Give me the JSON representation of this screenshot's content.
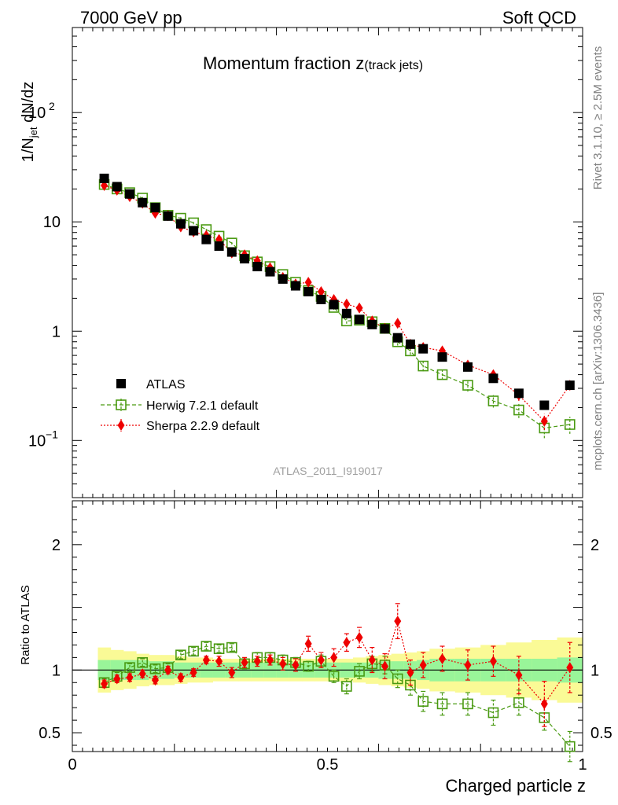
{
  "header": {
    "left": "7000 GeV pp",
    "right": "Soft QCD"
  },
  "side_labels": {
    "rivet": "Rivet 3.1.10, ≥ 2.5M events",
    "mcplots": "mcplots.cern.ch [arXiv:1306.3436]"
  },
  "colors": {
    "atlas": "#000000",
    "herwig": "#4a9a12",
    "sherpa": "#ee0000",
    "band_inner": "#99f599",
    "band_outer": "#fafa96"
  },
  "chart_data": [
    {
      "type": "scatter",
      "title": "Momentum fraction",
      "title_var": "z",
      "title_sub": "(track jets)",
      "ylabel_main": "1/N",
      "ylabel_sub": "jet",
      "ylabel_tail": " dN/dz",
      "yscale": "log",
      "ylim": [
        0.03,
        600
      ],
      "xlim": [
        0,
        1
      ],
      "yticks": [
        {
          "v": 0.1,
          "base": "10",
          "exp": "−1"
        },
        {
          "v": 1,
          "label": "1"
        },
        {
          "v": 10,
          "label": "10"
        },
        {
          "v": 100,
          "base": "10",
          "exp": "2"
        }
      ],
      "legend": [
        "ATLAS",
        "Herwig 7.2.1 default",
        "Sherpa 2.2.9 default"
      ],
      "legend_position": "lower-left",
      "watermark": "ATLAS_2011_I919017",
      "x": [
        0.0625,
        0.0875,
        0.1125,
        0.1375,
        0.1625,
        0.1875,
        0.2125,
        0.2375,
        0.2625,
        0.2875,
        0.3125,
        0.3375,
        0.3625,
        0.3875,
        0.4125,
        0.4375,
        0.4625,
        0.4875,
        0.5125,
        0.5375,
        0.5625,
        0.5875,
        0.6125,
        0.6375,
        0.6625,
        0.6875,
        0.725,
        0.775,
        0.825,
        0.875,
        0.925,
        0.975
      ],
      "series": [
        {
          "name": "ATLAS",
          "values": [
            25,
            21,
            18,
            15,
            13.5,
            11.3,
            9.6,
            8.3,
            6.9,
            6.0,
            5.3,
            4.6,
            3.9,
            3.5,
            3.0,
            2.6,
            2.3,
            1.95,
            1.75,
            1.45,
            1.28,
            1.15,
            1.05,
            0.87,
            0.76,
            0.69,
            0.58,
            0.47,
            0.37,
            0.27,
            0.21,
            0.32
          ],
          "yerr": [
            0.4,
            0.3,
            0.3,
            0.2,
            0.2,
            0.2,
            0.2,
            0.1,
            0.1,
            0.1,
            0.1,
            0.1,
            0.08,
            0.07,
            0.06,
            0.05,
            0.05,
            0.04,
            0.04,
            0.03,
            0.03,
            0.03,
            0.03,
            0.02,
            0.02,
            0.02,
            0.02,
            0.02,
            0.015,
            0.01,
            0.01,
            0.02
          ]
        },
        {
          "name": "Herwig 7.2.1 default",
          "values": [
            22,
            20,
            18.5,
            16.5,
            13.5,
            11.5,
            10.8,
            9.8,
            8.5,
            7.4,
            6.4,
            4.9,
            4.3,
            3.9,
            3.3,
            2.8,
            2.35,
            2.08,
            1.65,
            1.24,
            1.26,
            1.22,
            1.06,
            0.8,
            0.66,
            0.48,
            0.4,
            0.32,
            0.23,
            0.19,
            0.13,
            0.14
          ],
          "yerr": [
            0.6,
            0.5,
            0.5,
            0.4,
            0.4,
            0.3,
            0.3,
            0.3,
            0.3,
            0.3,
            0.2,
            0.2,
            0.2,
            0.2,
            0.15,
            0.1,
            0.1,
            0.1,
            0.08,
            0.07,
            0.07,
            0.07,
            0.06,
            0.06,
            0.05,
            0.05,
            0.04,
            0.04,
            0.03,
            0.03,
            0.025,
            0.025
          ]
        },
        {
          "name": "Sherpa 2.2.9 default",
          "values": [
            21.5,
            19.5,
            17,
            14.8,
            12,
            11.4,
            9.0,
            8.1,
            7.5,
            6.9,
            5.2,
            5.0,
            4.4,
            3.8,
            3.1,
            2.7,
            2.8,
            2.3,
            1.95,
            1.77,
            1.63,
            1.24,
            1.06,
            1.18,
            0.76,
            0.71,
            0.66,
            0.49,
            0.4,
            0.26,
            0.15,
            0.32
          ],
          "yerr": [
            0.6,
            0.5,
            0.5,
            0.4,
            0.4,
            0.3,
            0.3,
            0.3,
            0.3,
            0.3,
            0.2,
            0.2,
            0.2,
            0.2,
            0.15,
            0.1,
            0.1,
            0.1,
            0.08,
            0.07,
            0.07,
            0.07,
            0.06,
            0.07,
            0.05,
            0.05,
            0.04,
            0.04,
            0.03,
            0.03,
            0.025,
            0.03
          ]
        }
      ]
    },
    {
      "type": "scatter",
      "ylabel": "Ratio to ATLAS",
      "xlabel": "Charged particle z",
      "xlim": [
        0,
        1
      ],
      "ylim": [
        0.35,
        2.35
      ],
      "xticks": [
        {
          "v": 0,
          "label": "0"
        },
        {
          "v": 0.5,
          "label": "0.5"
        },
        {
          "v": 1,
          "label": "1"
        }
      ],
      "yticks": [
        {
          "v": 0.5,
          "label": "0.5"
        },
        {
          "v": 1,
          "label": "1"
        },
        {
          "v": 2,
          "label": "2"
        }
      ],
      "x": [
        0.0625,
        0.0875,
        0.1125,
        0.1375,
        0.1625,
        0.1875,
        0.2125,
        0.2375,
        0.2625,
        0.2875,
        0.3125,
        0.3375,
        0.3625,
        0.3875,
        0.4125,
        0.4375,
        0.4625,
        0.4875,
        0.5125,
        0.5375,
        0.5625,
        0.5875,
        0.6125,
        0.6375,
        0.6625,
        0.6875,
        0.725,
        0.775,
        0.825,
        0.875,
        0.925,
        0.975
      ],
      "band_edges": [
        0.05,
        0.075,
        0.1,
        0.125,
        0.15,
        0.175,
        0.2,
        0.225,
        0.25,
        0.275,
        0.3,
        0.325,
        0.35,
        0.375,
        0.4,
        0.425,
        0.45,
        0.475,
        0.5,
        0.525,
        0.55,
        0.575,
        0.6,
        0.625,
        0.65,
        0.675,
        0.7,
        0.75,
        0.8,
        0.85,
        0.9,
        0.95,
        1.0
      ],
      "band_stat": [
        0.08,
        0.08,
        0.08,
        0.08,
        0.07,
        0.07,
        0.06,
        0.06,
        0.06,
        0.06,
        0.06,
        0.06,
        0.06,
        0.06,
        0.06,
        0.06,
        0.06,
        0.06,
        0.06,
        0.06,
        0.06,
        0.06,
        0.07,
        0.07,
        0.07,
        0.08,
        0.09,
        0.09,
        0.09,
        0.09,
        0.09,
        0.1
      ],
      "band_total": [
        0.18,
        0.16,
        0.15,
        0.13,
        0.12,
        0.12,
        0.11,
        0.1,
        0.1,
        0.09,
        0.09,
        0.09,
        0.09,
        0.09,
        0.09,
        0.09,
        0.09,
        0.09,
        0.09,
        0.09,
        0.1,
        0.11,
        0.12,
        0.13,
        0.14,
        0.15,
        0.17,
        0.18,
        0.2,
        0.22,
        0.24,
        0.26
      ],
      "series": [
        {
          "name": "Herwig 7.2.1 default",
          "values": [
            0.9,
            0.95,
            1.02,
            1.06,
            1.01,
            1.02,
            1.12,
            1.15,
            1.19,
            1.17,
            1.18,
            1.05,
            1.1,
            1.1,
            1.08,
            1.06,
            1.03,
            1.07,
            0.95,
            0.87,
            0.99,
            1.05,
            1.04,
            0.93,
            0.88,
            0.75,
            0.73,
            0.73,
            0.66,
            0.74,
            0.62,
            0.39
          ],
          "yerr": [
            0.03,
            0.03,
            0.03,
            0.03,
            0.03,
            0.03,
            0.03,
            0.03,
            0.03,
            0.03,
            0.03,
            0.04,
            0.04,
            0.04,
            0.04,
            0.04,
            0.04,
            0.05,
            0.05,
            0.06,
            0.06,
            0.06,
            0.07,
            0.07,
            0.08,
            0.08,
            0.09,
            0.09,
            0.1,
            0.1,
            0.1,
            0.12
          ]
        },
        {
          "name": "Sherpa 2.2.9 default",
          "values": [
            0.89,
            0.93,
            0.94,
            0.97,
            0.92,
            1.0,
            0.94,
            0.98,
            1.08,
            1.07,
            0.98,
            1.06,
            1.07,
            1.08,
            1.05,
            1.04,
            1.21,
            1.08,
            1.1,
            1.22,
            1.26,
            1.08,
            1.03,
            1.39,
            0.98,
            1.04,
            1.09,
            1.04,
            1.07,
            0.96,
            0.73,
            1.02
          ],
          "yerr": [
            0.03,
            0.03,
            0.03,
            0.03,
            0.03,
            0.03,
            0.03,
            0.03,
            0.03,
            0.04,
            0.04,
            0.04,
            0.04,
            0.04,
            0.05,
            0.05,
            0.06,
            0.06,
            0.07,
            0.07,
            0.08,
            0.1,
            0.1,
            0.14,
            0.1,
            0.1,
            0.1,
            0.12,
            0.12,
            0.15,
            0.18,
            0.2
          ]
        }
      ]
    }
  ]
}
